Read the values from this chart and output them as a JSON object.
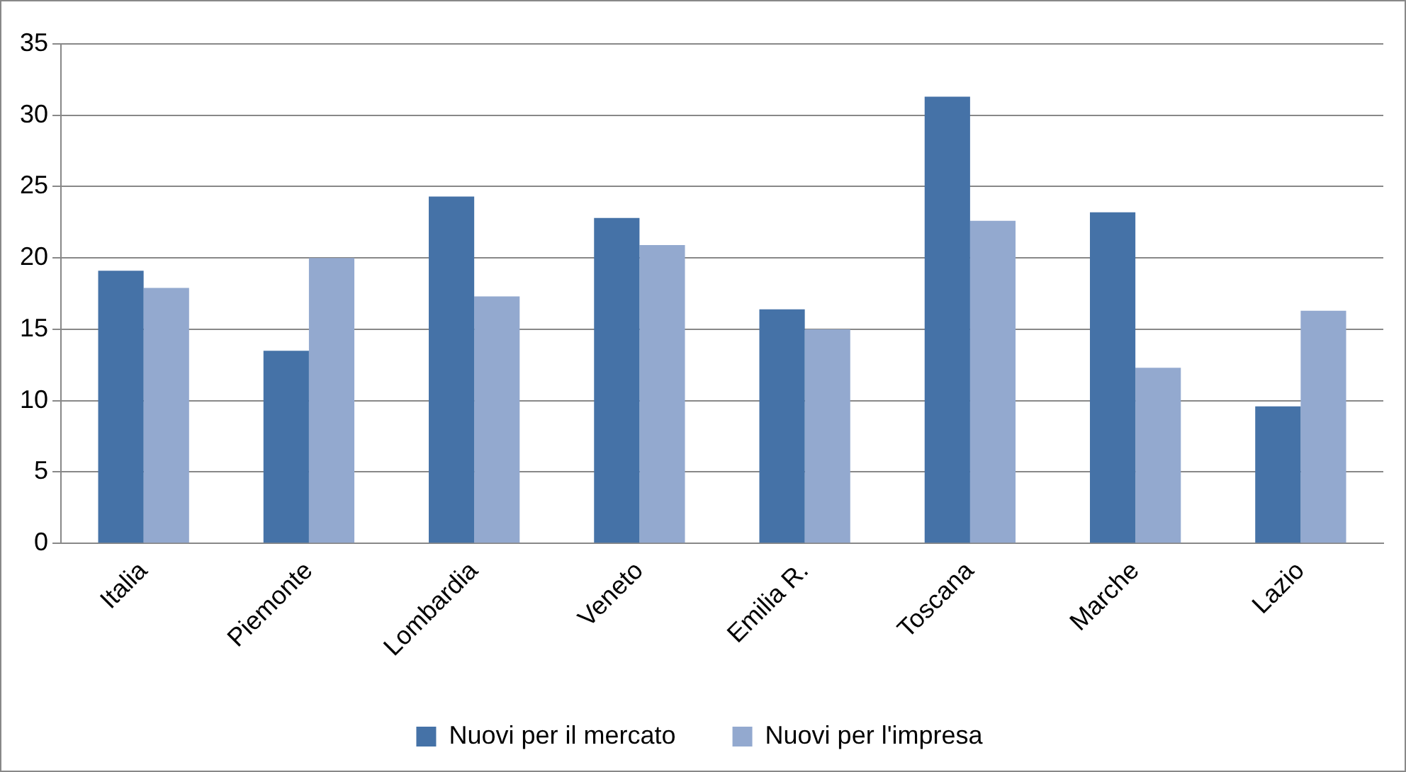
{
  "chart_data": {
    "type": "bar",
    "categories": [
      "Italia",
      "Piemonte",
      "Lombardia",
      "Veneto",
      "Emilia R.",
      "Toscana",
      "Marche",
      "Lazio"
    ],
    "series": [
      {
        "name": "Nuovi per il mercato",
        "color": "#4572a7",
        "values": [
          19.1,
          13.5,
          24.3,
          22.8,
          16.4,
          31.3,
          23.2,
          9.6
        ]
      },
      {
        "name": "Nuovi per l'impresa",
        "color": "#93a9cf",
        "values": [
          17.9,
          20.0,
          17.3,
          20.9,
          15.0,
          22.6,
          12.3,
          16.3
        ]
      }
    ],
    "ylim": [
      0,
      35
    ],
    "yticks": [
      0,
      5,
      10,
      15,
      20,
      25,
      30,
      35
    ],
    "grid": "y",
    "legend": "bottom"
  }
}
